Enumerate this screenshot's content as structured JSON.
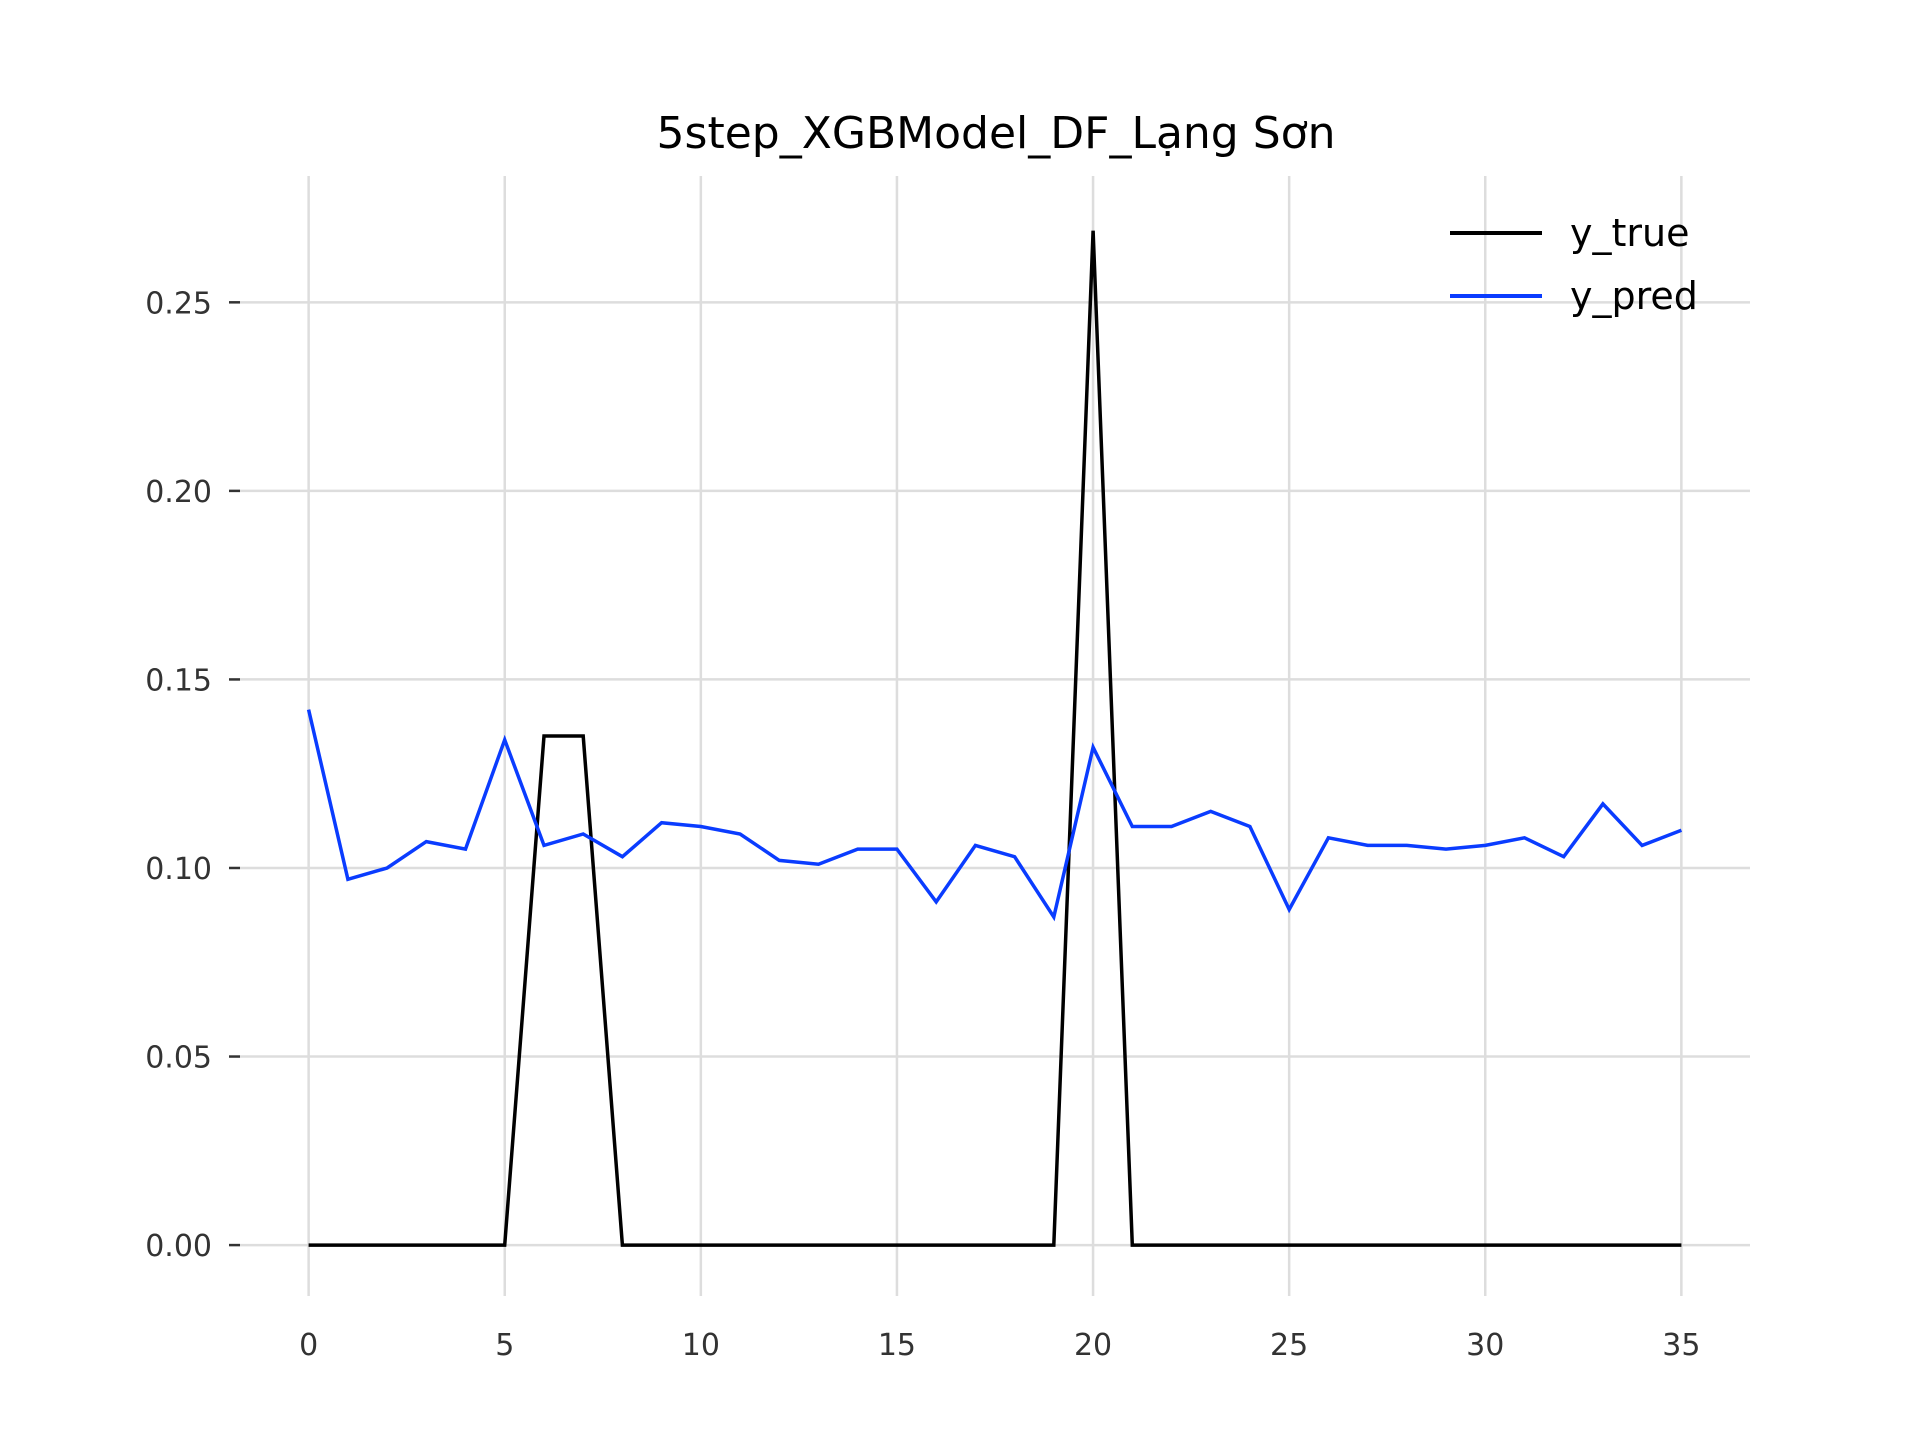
{
  "chart_data": {
    "type": "line",
    "title": "5step_XGBModel_DF_Lạng Sơn",
    "xlabel": "",
    "ylabel": "",
    "xlim": [
      -1.75,
      36.75
    ],
    "ylim": [
      -0.0135,
      0.2835
    ],
    "xticks": [
      0,
      5,
      10,
      15,
      20,
      25,
      30,
      35
    ],
    "xtick_labels": [
      "0",
      "5",
      "10",
      "15",
      "20",
      "25",
      "30",
      "35"
    ],
    "yticks": [
      0.0,
      0.05,
      0.1,
      0.15,
      0.2,
      0.25
    ],
    "ytick_labels": [
      "0.00",
      "0.05",
      "0.10",
      "0.15",
      "0.20",
      "0.25"
    ],
    "grid": true,
    "legend_position": "top-right",
    "x": [
      0,
      1,
      2,
      3,
      4,
      5,
      6,
      7,
      8,
      9,
      10,
      11,
      12,
      13,
      14,
      15,
      16,
      17,
      18,
      19,
      20,
      21,
      22,
      23,
      24,
      25,
      26,
      27,
      28,
      29,
      30,
      31,
      32,
      33,
      34,
      35
    ],
    "series": [
      {
        "name": "y_true",
        "color": "#000000",
        "values": [
          0,
          0,
          0,
          0,
          0,
          0,
          0.135,
          0.135,
          0,
          0,
          0,
          0,
          0,
          0,
          0,
          0,
          0,
          0,
          0,
          0,
          0.269,
          0,
          0,
          0,
          0,
          0,
          0,
          0,
          0,
          0,
          0,
          0,
          0,
          0,
          0,
          0
        ]
      },
      {
        "name": "y_pred",
        "color": "#0a3cff",
        "values": [
          0.142,
          0.097,
          0.1,
          0.107,
          0.105,
          0.134,
          0.106,
          0.109,
          0.103,
          0.112,
          0.111,
          0.109,
          0.102,
          0.101,
          0.105,
          0.105,
          0.091,
          0.106,
          0.103,
          0.087,
          0.132,
          0.111,
          0.111,
          0.115,
          0.111,
          0.089,
          0.108,
          0.106,
          0.106,
          0.105,
          0.106,
          0.108,
          0.103,
          0.117,
          0.106,
          0.11
        ]
      }
    ]
  }
}
